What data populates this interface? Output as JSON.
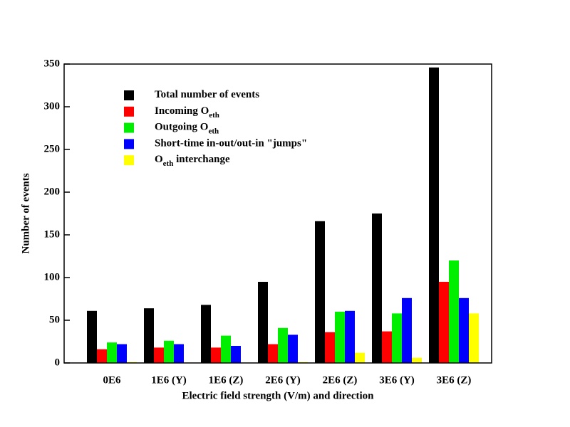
{
  "chart_data": {
    "type": "bar",
    "x_label": "Electric field strength (V/m) and direction",
    "y_label": "Number of events",
    "categories": [
      "0E6",
      "1E6 (Y)",
      "1E6 (Z)",
      "2E6 (Y)",
      "2E6 (Z)",
      "3E6 (Y)",
      "3E6 (Z)"
    ],
    "series": [
      {
        "name": [
          {
            "text": "Total number of events"
          }
        ],
        "color": "#000000",
        "values": [
          61,
          64,
          68,
          95,
          166,
          175,
          346
        ]
      },
      {
        "name": [
          {
            "text": "Incoming O"
          },
          {
            "text": "eth",
            "sub": true
          }
        ],
        "color": "#ff0000",
        "values": [
          16,
          18,
          18,
          22,
          36,
          37,
          95
        ]
      },
      {
        "name": [
          {
            "text": "Outgoing O"
          },
          {
            "text": "eth",
            "sub": true
          }
        ],
        "color": "#00ee00",
        "values": [
          24,
          26,
          32,
          41,
          60,
          58,
          120
        ]
      },
      {
        "name": [
          {
            "text": "Short-time in-out/out-in \"jumps\""
          }
        ],
        "color": "#0000ff",
        "values": [
          22,
          22,
          20,
          33,
          61,
          76,
          76
        ]
      },
      {
        "name": [
          {
            "text": "O"
          },
          {
            "text": "eth",
            "sub": true
          },
          {
            "text": " interchange"
          }
        ],
        "color": "#ffff00",
        "values": [
          1,
          0,
          0,
          1,
          12,
          6,
          58
        ]
      }
    ],
    "ylim": [
      0,
      350
    ],
    "yticks": [
      0,
      50,
      100,
      150,
      200,
      250,
      300,
      350
    ],
    "grid": false,
    "legend": "upper left"
  }
}
